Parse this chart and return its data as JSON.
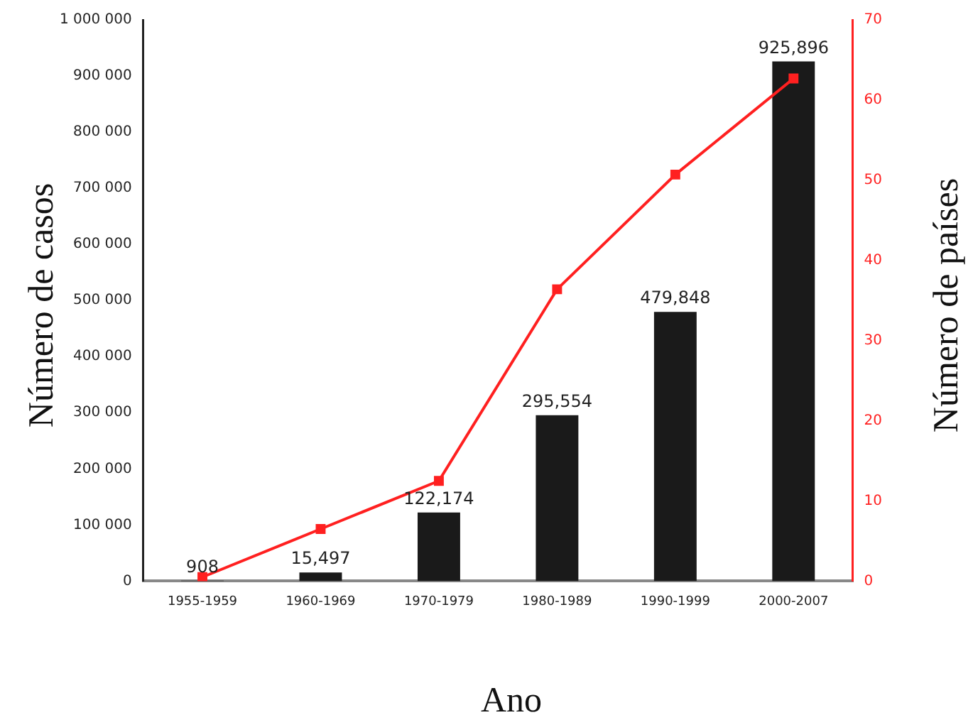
{
  "chart_data": {
    "type": "bar",
    "xlabel": "Ano",
    "ylabel": "Número de casos",
    "y2label": "Número de países",
    "categories": [
      "1955-1959",
      "1960-1969",
      "1970-1979",
      "1980-1989",
      "1990-1999",
      "2000-2007"
    ],
    "series": [
      {
        "color": "#1a1a1a",
        "values": [
          908,
          15497,
          122174,
          295554,
          479848,
          925896
        ],
        "value_labels": [
          "908",
          "15,497",
          "122,174",
          "295,554",
          "479,848",
          "925,896"
        ]
      },
      {
        "type": "line",
        "axis": "y2",
        "color": "#ff2020",
        "marker": "square",
        "values": [
          0.5,
          6.5,
          12.5,
          36.4,
          50.7,
          62.7
        ]
      }
    ],
    "ylim": [
      0,
      1000000
    ],
    "yticks": [
      0,
      {
        "value": 100000,
        "label": "100 000"
      },
      {
        "value": 200000,
        "label": "200 000"
      },
      {
        "value": 300000,
        "label": "300 000"
      },
      {
        "value": 400000,
        "label": "400 000"
      },
      {
        "value": 500000,
        "label": "500 000"
      },
      {
        "value": 600000,
        "label": "600 000"
      },
      {
        "value": 700000,
        "label": "700 000"
      },
      {
        "value": 800000,
        "label": "800 000"
      },
      {
        "value": 900000,
        "label": "900 000"
      },
      {
        "value": 1000000,
        "label": "1 000 000"
      }
    ],
    "y2lim": [
      0,
      70
    ],
    "y2ticks": [
      0,
      10,
      20,
      30,
      40,
      50,
      60,
      70
    ],
    "grid": false,
    "legend": false
  }
}
